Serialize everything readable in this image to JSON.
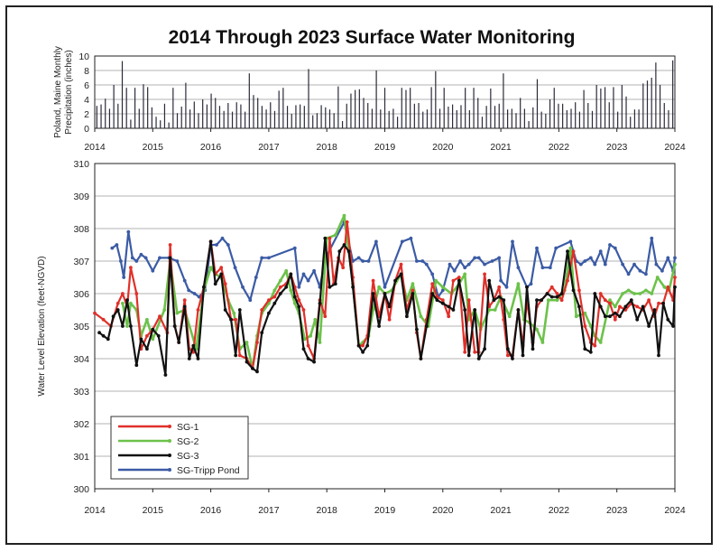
{
  "chart_data": [
    {
      "type": "bar",
      "title": "2014 Through 2023 Surface Water Monitoring",
      "ylabel": [
        "Poland, Maine Monthly",
        "Precipitation (inches)"
      ],
      "xlabel": "",
      "ylim": [
        0,
        10
      ],
      "yticks": [
        0,
        2,
        4,
        6,
        8,
        10
      ],
      "xlim": [
        2014,
        2024
      ],
      "xticks": [
        "2014",
        "2015",
        "2016",
        "2017",
        "2018",
        "2019",
        "2020",
        "2021",
        "2022",
        "2023",
        "2024"
      ],
      "grid": true,
      "values": [
        3.1,
        3.3,
        4.1,
        2.7,
        6.0,
        3.4,
        9.3,
        5.6,
        1.2,
        5.6,
        2.7,
        6.1,
        5.7,
        2.9,
        1.6,
        1.1,
        3.4,
        0.8,
        5.6,
        2.1,
        3.0,
        6.3,
        2.6,
        3.7,
        2.1,
        4.0,
        3.3,
        4.8,
        4.2,
        3.1,
        2.4,
        3.5,
        2.3,
        3.6,
        3.3,
        2.3,
        7.6,
        4.6,
        4.2,
        3.1,
        2.6,
        3.6,
        2.4,
        5.2,
        5.6,
        3.1,
        2.0,
        3.2,
        3.3,
        3.1,
        8.2,
        1.8,
        2.1,
        3.2,
        2.9,
        2.6,
        2.1,
        5.8,
        1.0,
        3.4,
        4.8,
        5.3,
        5.4,
        4.2,
        3.5,
        2.7,
        8.0,
        2.6,
        5.6,
        2.4,
        2.7,
        1.6,
        5.6,
        5.3,
        5.6,
        3.4,
        3.5,
        2.3,
        2.6,
        5.7,
        7.9,
        2.7,
        5.6,
        3.0,
        3.3,
        2.5,
        3.2,
        5.6,
        2.5,
        5.6,
        4.2,
        1.6,
        3.1,
        5.5,
        3.1,
        3.4,
        7.6,
        2.6,
        2.7,
        2.1,
        4.2,
        2.7,
        1.0,
        2.9,
        6.8,
        2.3,
        2.0,
        4.0,
        5.6,
        3.4,
        3.4,
        2.5,
        2.7,
        3.6,
        2.3,
        5.3,
        3.5,
        2.4,
        6.0,
        5.5,
        5.7,
        3.6,
        5.7,
        2.3,
        6.0,
        4.4,
        1.6,
        2.6,
        2.6,
        6.2,
        6.6,
        7.0,
        9.1,
        6.0,
        3.5,
        2.5,
        9.4
      ],
      "value_unit": "inches (one bar per month)"
    },
    {
      "type": "line",
      "title": "",
      "xlabel": "",
      "ylabel": "Water Level Elevation (feet-NGVD)",
      "xlim": [
        2014,
        2024
      ],
      "xticks": [
        "2014",
        "2015",
        "2016",
        "2017",
        "2018",
        "2019",
        "2020",
        "2021",
        "2022",
        "2023",
        "2024"
      ],
      "ylim": [
        300,
        310
      ],
      "yticks": [
        300,
        301,
        302,
        303,
        304,
        305,
        306,
        307,
        308,
        309,
        310
      ],
      "grid": true,
      "legend_position": "bottom-left",
      "series": [
        {
          "name": "SG-1",
          "color": "#e0302a",
          "x": [
            2014.0,
            2014.15,
            2014.28,
            2014.4,
            2014.48,
            2014.56,
            2014.62,
            2014.72,
            2014.8,
            2014.9,
            2015.0,
            2015.12,
            2015.25,
            2015.3,
            2015.38,
            2015.45,
            2015.55,
            2015.63,
            2015.7,
            2015.78,
            2015.88,
            2016.0,
            2016.08,
            2016.18,
            2016.25,
            2016.35,
            2016.43,
            2016.5,
            2016.62,
            2016.72,
            2016.8,
            2016.88,
            2017.0,
            2017.1,
            2017.2,
            2017.3,
            2017.38,
            2017.45,
            2017.52,
            2017.6,
            2017.68,
            2017.78,
            2017.88,
            2017.97,
            2018.05,
            2018.12,
            2018.2,
            2018.28,
            2018.35,
            2018.45,
            2018.55,
            2018.62,
            2018.7,
            2018.8,
            2018.9,
            2019.0,
            2019.08,
            2019.18,
            2019.28,
            2019.38,
            2019.48,
            2019.55,
            2019.62,
            2019.72,
            2019.82,
            2019.9,
            2020.0,
            2020.1,
            2020.18,
            2020.28,
            2020.38,
            2020.45,
            2020.55,
            2020.62,
            2020.72,
            2020.8,
            2020.88,
            2020.97,
            2021.05,
            2021.12,
            2021.2,
            2021.3,
            2021.38,
            2021.45,
            2021.55,
            2021.62,
            2021.7,
            2021.8,
            2021.88,
            2021.97,
            2022.05,
            2022.15,
            2022.25,
            2022.35,
            2022.45,
            2022.55,
            2022.62,
            2022.72,
            2022.8,
            2022.88,
            2022.97,
            2023.05,
            2023.15,
            2023.25,
            2023.35,
            2023.45,
            2023.55,
            2023.65,
            2023.72,
            2023.8,
            2023.88,
            2023.97,
            2024.0
          ],
          "y": [
            305.4,
            305.2,
            305.0,
            305.7,
            306.0,
            305.6,
            306.8,
            306.0,
            304.3,
            304.7,
            304.9,
            305.3,
            304.8,
            307.5,
            305.0,
            304.5,
            305.8,
            304.3,
            304.2,
            305.5,
            306.2,
            307.6,
            306.6,
            306.8,
            306.3,
            305.2,
            305.2,
            304.1,
            304.0,
            303.7,
            304.5,
            305.5,
            305.8,
            305.9,
            306.2,
            306.3,
            306.6,
            306.2,
            305.8,
            305.5,
            304.4,
            304.0,
            305.8,
            305.3,
            307.7,
            306.3,
            307.1,
            306.8,
            308.2,
            306.5,
            304.4,
            304.4,
            304.7,
            306.4,
            305.3,
            306.0,
            305.2,
            306.4,
            306.9,
            305.5,
            306.1,
            304.8,
            304.0,
            305.2,
            306.3,
            305.9,
            305.8,
            305.3,
            306.4,
            306.5,
            304.2,
            305.8,
            304.2,
            304.2,
            306.6,
            305.6,
            305.8,
            306.2,
            305.2,
            304.1,
            304.1,
            305.5,
            304.4,
            305.8,
            304.5,
            305.6,
            305.8,
            306.0,
            306.2,
            306.0,
            305.8,
            306.4,
            307.3,
            306.1,
            305.0,
            304.5,
            304.4,
            306.0,
            305.8,
            305.7,
            305.2,
            305.6,
            305.5,
            305.7,
            305.6,
            305.5,
            305.8,
            305.3,
            305.7,
            305.7,
            306.2,
            305.8,
            306.5
          ]
        },
        {
          "name": "SG-2",
          "color": "#6cc24a",
          "x": [
            2014.48,
            2014.56,
            2014.62,
            2014.72,
            2014.8,
            2014.9,
            2015.0,
            2015.2,
            2015.3,
            2015.42,
            2015.55,
            2015.75,
            2015.88,
            2016.0,
            2016.08,
            2016.18,
            2016.3,
            2016.4,
            2016.5,
            2016.62,
            2016.72,
            2016.8,
            2016.88,
            2017.0,
            2017.1,
            2017.2,
            2017.3,
            2017.38,
            2017.45,
            2017.52,
            2017.62,
            2017.72,
            2017.8,
            2017.88,
            2018.0,
            2018.15,
            2018.3,
            2018.45,
            2018.55,
            2018.62,
            2018.72,
            2018.8,
            2018.9,
            2019.0,
            2019.12,
            2019.28,
            2019.38,
            2019.48,
            2019.62,
            2019.75,
            2019.88,
            2020.0,
            2020.15,
            2020.28,
            2020.38,
            2020.45,
            2020.55,
            2020.65,
            2020.8,
            2020.9,
            2021.0,
            2021.15,
            2021.3,
            2021.4,
            2021.5,
            2021.62,
            2021.72,
            2021.82,
            2021.97,
            2022.1,
            2022.2,
            2022.3,
            2022.45,
            2022.55,
            2022.62,
            2022.72,
            2022.88,
            2022.97,
            2023.1,
            2023.2,
            2023.3,
            2023.4,
            2023.5,
            2023.6,
            2023.7,
            2023.82,
            2023.9,
            2024.0
          ],
          "y": [
            305.7,
            305.0,
            305.7,
            305.5,
            304.7,
            305.2,
            304.6,
            305.5,
            307.0,
            305.4,
            305.5,
            304.3,
            306.1,
            306.8,
            306.6,
            306.5,
            305.8,
            305.4,
            304.3,
            304.5,
            303.7,
            304.7,
            305.4,
            305.7,
            306.1,
            306.4,
            306.7,
            306.1,
            305.7,
            305.4,
            304.6,
            304.7,
            305.2,
            304.5,
            307.7,
            307.8,
            308.4,
            306.3,
            304.4,
            304.5,
            304.7,
            305.5,
            306.2,
            306.0,
            306.1,
            306.6,
            305.8,
            306.3,
            305.3,
            305.0,
            306.4,
            306.2,
            306.0,
            306.3,
            306.6,
            305.2,
            305.5,
            304.9,
            305.5,
            305.5,
            305.9,
            305.3,
            306.3,
            305.2,
            305.1,
            304.9,
            304.5,
            305.8,
            305.8,
            306.1,
            307.4,
            305.3,
            305.4,
            305.0,
            304.7,
            304.5,
            305.8,
            305.6,
            306.0,
            306.1,
            306.0,
            306.0,
            306.1,
            306.0,
            306.5,
            306.2,
            306.1,
            306.9
          ]
        },
        {
          "name": "SG-3",
          "color": "#111111",
          "x": [
            2014.08,
            2014.15,
            2014.23,
            2014.32,
            2014.4,
            2014.48,
            2014.56,
            2014.62,
            2014.72,
            2014.8,
            2014.9,
            2015.0,
            2015.1,
            2015.22,
            2015.3,
            2015.38,
            2015.45,
            2015.55,
            2015.63,
            2015.7,
            2015.78,
            2015.88,
            2016.0,
            2016.08,
            2016.18,
            2016.25,
            2016.35,
            2016.43,
            2016.5,
            2016.62,
            2016.72,
            2016.8,
            2016.88,
            2017.0,
            2017.1,
            2017.2,
            2017.3,
            2017.38,
            2017.45,
            2017.52,
            2017.6,
            2017.68,
            2017.78,
            2017.88,
            2017.97,
            2018.05,
            2018.15,
            2018.22,
            2018.3,
            2018.38,
            2018.45,
            2018.55,
            2018.62,
            2018.7,
            2018.8,
            2018.9,
            2019.0,
            2019.08,
            2019.18,
            2019.28,
            2019.38,
            2019.48,
            2019.55,
            2019.62,
            2019.72,
            2019.82,
            2019.9,
            2020.0,
            2020.1,
            2020.18,
            2020.28,
            2020.38,
            2020.45,
            2020.55,
            2020.62,
            2020.72,
            2020.8,
            2020.88,
            2020.97,
            2021.05,
            2021.12,
            2021.2,
            2021.3,
            2021.38,
            2021.45,
            2021.55,
            2021.62,
            2021.7,
            2021.8,
            2021.88,
            2021.97,
            2022.05,
            2022.15,
            2022.25,
            2022.35,
            2022.45,
            2022.55,
            2022.62,
            2022.72,
            2022.8,
            2022.88,
            2022.97,
            2023.05,
            2023.15,
            2023.25,
            2023.35,
            2023.45,
            2023.55,
            2023.65,
            2023.72,
            2023.8,
            2023.88,
            2023.97,
            2024.0
          ],
          "y": [
            304.8,
            304.7,
            304.6,
            305.3,
            305.5,
            305.0,
            305.8,
            305.0,
            303.8,
            304.6,
            304.3,
            304.9,
            304.7,
            303.5,
            307.1,
            305.0,
            304.5,
            305.6,
            304.0,
            304.4,
            304.0,
            306.2,
            307.6,
            306.3,
            306.6,
            305.5,
            305.2,
            304.1,
            305.5,
            303.9,
            303.7,
            303.6,
            304.8,
            305.4,
            305.7,
            306.0,
            306.2,
            306.6,
            305.9,
            305.6,
            304.3,
            304.0,
            303.9,
            305.7,
            307.7,
            306.2,
            306.3,
            307.3,
            307.5,
            307.3,
            306.2,
            304.4,
            304.2,
            304.4,
            306.0,
            305.0,
            306.0,
            305.6,
            306.4,
            306.6,
            305.3,
            306.0,
            304.9,
            304.0,
            305.0,
            306.0,
            305.8,
            305.7,
            305.6,
            305.5,
            306.4,
            305.5,
            304.1,
            305.5,
            304.0,
            304.3,
            306.4,
            305.8,
            305.9,
            305.8,
            304.3,
            304.0,
            305.5,
            304.1,
            306.2,
            304.3,
            305.8,
            305.8,
            306.0,
            305.9,
            305.9,
            306.0,
            307.3,
            306.1,
            305.6,
            304.3,
            304.2,
            306.0,
            305.6,
            305.3,
            305.3,
            305.4,
            305.3,
            305.6,
            305.8,
            305.2,
            305.6,
            305.0,
            305.5,
            304.1,
            305.7,
            305.2,
            305.0,
            306.2
          ]
        },
        {
          "name": "SG-Tripp Pond",
          "color": "#3b5ba5",
          "x": [
            2014.3,
            2014.38,
            2014.45,
            2014.5,
            2014.58,
            2014.65,
            2014.72,
            2014.8,
            2014.88,
            2015.0,
            2015.12,
            2015.28,
            2015.42,
            2015.55,
            2015.62,
            2015.72,
            2015.8,
            2015.9,
            2016.0,
            2016.1,
            2016.2,
            2016.3,
            2016.42,
            2016.55,
            2016.68,
            2016.78,
            2016.88,
            2017.0,
            2017.45,
            2017.52,
            2017.6,
            2017.68,
            2017.78,
            2017.88,
            2017.98,
            2018.3,
            2018.45,
            2018.55,
            2018.62,
            2018.72,
            2018.85,
            2019.0,
            2019.3,
            2019.45,
            2019.55,
            2019.65,
            2019.72,
            2019.82,
            2019.92,
            2020.0,
            2020.12,
            2020.2,
            2020.3,
            2020.38,
            2020.45,
            2020.55,
            2020.62,
            2020.72,
            2020.85,
            2020.97,
            2021.0,
            2021.1,
            2021.2,
            2021.3,
            2021.45,
            2021.52,
            2021.62,
            2021.72,
            2021.85,
            2021.95,
            2022.2,
            2022.3,
            2022.38,
            2022.45,
            2022.55,
            2022.62,
            2022.72,
            2022.8,
            2022.88,
            2022.97,
            2023.1,
            2023.2,
            2023.3,
            2023.4,
            2023.5,
            2023.6,
            2023.68,
            2023.78,
            2023.88,
            2023.97,
            2024.0
          ],
          "y": [
            307.4,
            307.5,
            307.0,
            306.5,
            307.9,
            307.1,
            307.0,
            307.2,
            307.1,
            306.7,
            307.1,
            307.1,
            307.0,
            306.4,
            306.1,
            306.0,
            305.9,
            306.1,
            307.5,
            307.5,
            307.7,
            307.5,
            306.8,
            306.2,
            305.8,
            306.5,
            307.1,
            307.1,
            307.4,
            306.2,
            306.6,
            306.4,
            306.7,
            306.2,
            307.1,
            308.2,
            307.0,
            307.1,
            307.0,
            307.0,
            307.6,
            306.2,
            307.6,
            307.7,
            307.0,
            307.0,
            306.9,
            306.6,
            305.9,
            306.1,
            306.9,
            306.7,
            307.0,
            306.8,
            306.9,
            307.1,
            307.1,
            306.9,
            307.0,
            307.1,
            306.4,
            306.2,
            307.6,
            306.8,
            306.2,
            306.3,
            307.4,
            306.8,
            306.8,
            307.4,
            307.6,
            307.0,
            306.9,
            307.0,
            307.1,
            306.9,
            307.3,
            306.9,
            307.5,
            307.4,
            306.9,
            306.6,
            306.9,
            306.7,
            306.6,
            307.7,
            306.9,
            306.7,
            307.1,
            306.7,
            307.1
          ]
        }
      ]
    }
  ]
}
